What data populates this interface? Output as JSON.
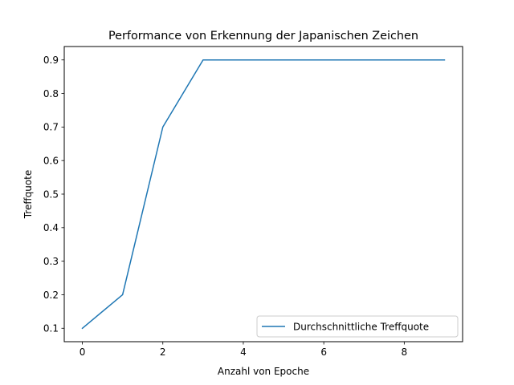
{
  "chart_data": {
    "type": "line",
    "title": "Performance von Erkennung der Japanischen Zeichen",
    "xlabel": "Anzahl von Epoche",
    "ylabel": "Treffquote",
    "xlim": [
      -0.45,
      9.45
    ],
    "ylim": [
      0.06,
      0.94
    ],
    "xticks": [
      0,
      2,
      4,
      6,
      8
    ],
    "yticks": [
      0.1,
      0.2,
      0.3,
      0.4,
      0.5,
      0.6,
      0.7,
      0.8,
      0.9
    ],
    "grid": false,
    "legend_position": "lower-right",
    "series": [
      {
        "name": "Durchschnittliche Treffquote",
        "color": "#1f77b4",
        "x": [
          0,
          1,
          2,
          3,
          4,
          5,
          6,
          7,
          8,
          9
        ],
        "y": [
          0.1,
          0.2,
          0.7,
          0.9,
          0.9,
          0.9,
          0.9,
          0.9,
          0.9,
          0.9
        ]
      }
    ]
  }
}
